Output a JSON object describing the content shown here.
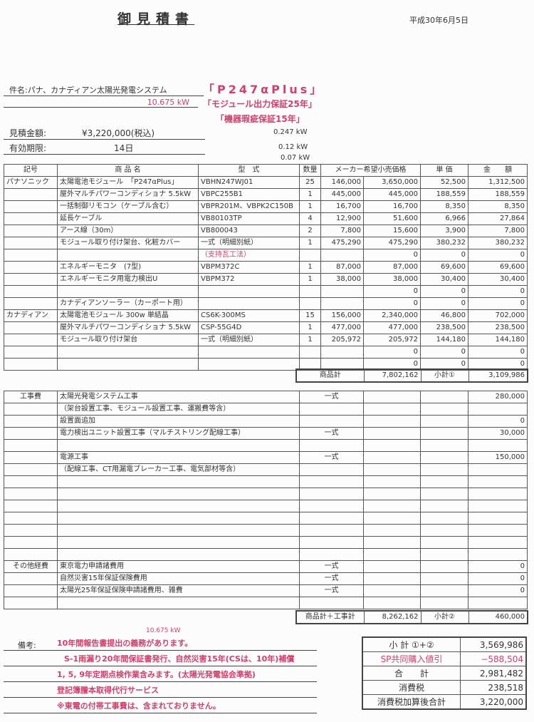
{
  "header": {
    "title": "御見積書",
    "date": "平成30年6月5日"
  },
  "info": {
    "subject": "件名:パナ、カナディアン太陽光発電システム",
    "capacity": "10.675  kW",
    "product_badge": "「P247αPlus」",
    "warranty1": "「モジュール出力保証25年」",
    "warranty2": "「機器瑕疵保証15年」",
    "amount_label": "見積金額:",
    "amount_value": "¥3,220,000(税込)",
    "validity_label": "有効期限:",
    "validity_value": "14日",
    "kw1": "0.247 kW",
    "kw2": "0.12 kW",
    "kw3": "0.07 kW"
  },
  "products": {
    "headers": [
      "記号",
      "商 品 名",
      "型　式",
      "数量",
      "メーカー希望小売価格",
      "単 価",
      "金　　額"
    ],
    "rows": [
      [
        "パナソニック",
        "太陽電池モジュール　「P247αPlus」",
        "VBHN247WJ01",
        "25",
        "146,000",
        "3,650,000",
        "52,500",
        "1,312,500"
      ],
      [
        "",
        "屋外マルチパワーコンディショナ 5.5kW",
        "VBPC255B1",
        "1",
        "445,000",
        "445,000",
        "188,559",
        "188,559"
      ],
      [
        "",
        "一括制御リモコン（ケーブル含む）",
        "VBPR201M、VBPK2C150B",
        "1",
        "16,700",
        "16,700",
        "8,350",
        "8,350"
      ],
      [
        "",
        "延長ケーブル",
        "VB80103TP",
        "4",
        "12,900",
        "51,600",
        "6,966",
        "27,864"
      ],
      [
        "",
        "アース線（30m）",
        "VB800043",
        "2",
        "7,800",
        "15,600",
        "3,900",
        "7,800"
      ],
      [
        "",
        "モジュール取り付け架台、化粧カバー",
        "一式（明細別紙）",
        "1",
        "475,290",
        "475,290",
        "380,232",
        "380,232"
      ],
      [
        "",
        "",
        "（支持瓦工法）",
        "",
        "",
        "0",
        "0",
        "0"
      ],
      [
        "",
        "エネルギーモニタ　(7型)",
        "VBPM372C",
        "1",
        "87,000",
        "87,000",
        "69,600",
        "69,600"
      ],
      [
        "",
        "エネルギーモニタ用電力検出U",
        "VBPM372",
        "1",
        "38,000",
        "38,000",
        "30,400",
        "30,400"
      ],
      [
        "",
        "",
        "",
        "",
        "",
        "0",
        "0",
        "0"
      ],
      [
        "",
        "カナディアンソーラー（カーポート用）",
        "",
        "",
        "",
        "0",
        "0",
        "0"
      ],
      [
        "カナディアン",
        "太陽電池モジュール 300w 単結晶",
        "CS6K-300MS",
        "15",
        "156,000",
        "2,340,000",
        "46,800",
        "702,000"
      ],
      [
        "",
        "屋外マルチパワーコンディショナ 5.5kW",
        "CSP-55G4D",
        "1",
        "477,000",
        "477,000",
        "238,500",
        "238,500"
      ],
      [
        "",
        "モジュール取り付け架台",
        "一式（明細別紙）",
        "1",
        "205,972",
        "205,972",
        "144,180",
        "144,180"
      ],
      [
        "",
        "",
        "",
        "",
        "",
        "0",
        "0",
        "0"
      ],
      [
        "",
        "",
        "",
        "",
        "",
        "0",
        "0",
        "0"
      ]
    ],
    "summary": {
      "label": "商品計",
      "retail_total": "7,802,162",
      "subtotal_label": "小計①",
      "subtotal": "3,109,986"
    }
  },
  "works": {
    "rows": [
      [
        "工事費",
        "太陽光発電システム工事",
        "一式",
        "280,000"
      ],
      [
        "",
        "（架台設置工事、モジュール設置工事、運搬費等含）",
        "",
        ""
      ],
      [
        "",
        "設置面追加",
        "",
        "0"
      ],
      [
        "",
        "電力検出ユニット設置工事（マルチストリング配線工事）",
        "一式",
        "30,000"
      ],
      [
        "",
        "",
        "",
        ""
      ],
      [
        "",
        "電源工事",
        "一式",
        "150,000"
      ],
      [
        "",
        "（配線工事、CT用漏電ブレーカー工事、電気部材等含）",
        "",
        ""
      ],
      [
        "",
        "",
        "",
        ""
      ],
      [
        "",
        "",
        "",
        ""
      ],
      [
        "",
        "",
        "",
        ""
      ],
      [
        "",
        "",
        "",
        ""
      ],
      [
        "",
        "",
        "",
        ""
      ],
      [
        "",
        "",
        "",
        ""
      ],
      [
        "",
        "",
        "",
        ""
      ],
      [
        "その他経費",
        "東京電力申請諸費用",
        "一式",
        "0"
      ],
      [
        "",
        "自然災害15年保証保険費用",
        "一式",
        "0"
      ],
      [
        "",
        "太陽光25年保証保険申請諸費用、雑費",
        "一式",
        "0"
      ],
      [
        "",
        "",
        "",
        ""
      ]
    ],
    "summary": {
      "label": "商品計＋工事計",
      "retail_total": "8,262,162",
      "subtotal_label": "小計②",
      "subtotal": "460,000"
    }
  },
  "remarks": {
    "capacity": "10.675 kW",
    "label": "備考:",
    "lines": [
      "10年間報告書提出の義務があります。",
      "S-1雨漏り20年間保証書発行、自然災害15年(CSは、10年)補償",
      "1, 5, 9年定期点検作業含みます。(太陽光発電協会準拠)",
      "登記簿謄本取得代行サービス",
      "※東電の付帯工事費は、含まれておりません。"
    ]
  },
  "totals": [
    {
      "label": "小 計 ①+②",
      "value": "3,569,986"
    },
    {
      "label": "SP共同購入値引",
      "value": "−588,504",
      "accent": "#d0406a"
    },
    {
      "label": "合　　計",
      "value": "2,981,482"
    },
    {
      "label": "消費税",
      "value": "238,518"
    },
    {
      "label": "消費税加算後合計",
      "value": "3,220,000"
    }
  ]
}
